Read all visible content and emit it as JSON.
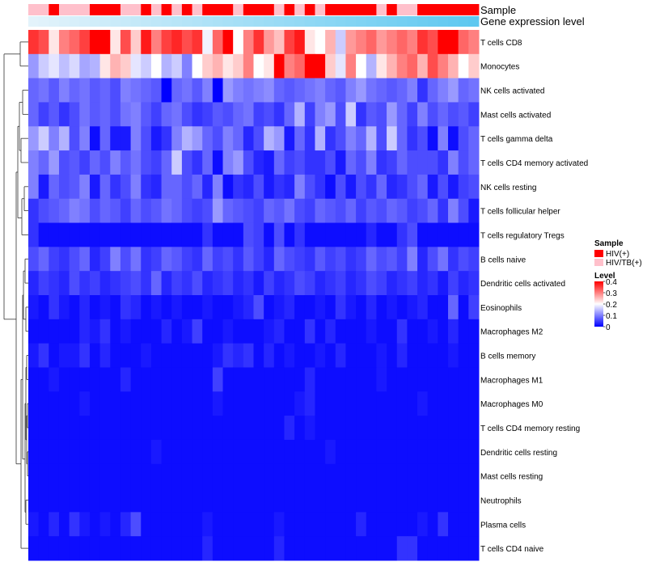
{
  "chart_data": {
    "type": "heatmap",
    "title": "",
    "annotation_tracks": [
      "Sample",
      "Gene expression level"
    ],
    "sample_legend": {
      "title": "Sample",
      "entries": [
        {
          "label": "HIV(+)",
          "color": "#ff0000"
        },
        {
          "label": "HIV/TB(+)",
          "color": "#ffc0cb"
        }
      ]
    },
    "level_legend": {
      "title": "Level",
      "ticks": [
        "0.4",
        "0.3",
        "0.2",
        "0.1",
        "0"
      ],
      "range": [
        0,
        0.4
      ],
      "colors": [
        "#0000ff",
        "#ffffff",
        "#ff0000"
      ]
    },
    "sample_group": [
      "HIV/TB(+)",
      "HIV/TB(+)",
      "HIV(+)",
      "HIV/TB(+)",
      "HIV/TB(+)",
      "HIV/TB(+)",
      "HIV(+)",
      "HIV(+)",
      "HIV(+)",
      "HIV/TB(+)",
      "HIV/TB(+)",
      "HIV(+)",
      "HIV/TB(+)",
      "HIV(+)",
      "HIV/TB(+)",
      "HIV(+)",
      "HIV/TB(+)",
      "HIV(+)",
      "HIV(+)",
      "HIV(+)",
      "HIV/TB(+)",
      "HIV(+)",
      "HIV(+)",
      "HIV(+)",
      "HIV/TB(+)",
      "HIV(+)",
      "HIV/TB(+)",
      "HIV(+)",
      "HIV/TB(+)",
      "HIV(+)",
      "HIV(+)",
      "HIV(+)",
      "HIV(+)",
      "HIV(+)",
      "HIV/TB(+)",
      "HIV(+)",
      "HIV/TB(+)",
      "HIV/TB(+)",
      "HIV(+)",
      "HIV(+)",
      "HIV(+)",
      "HIV(+)",
      "HIV(+)",
      "HIV(+)"
    ],
    "rows": [
      {
        "label": "T cells CD8",
        "values": [
          0.36,
          0.34,
          0.22,
          0.3,
          0.32,
          0.35,
          0.4,
          0.4,
          0.22,
          0.34,
          0.24,
          0.38,
          0.3,
          0.35,
          0.37,
          0.34,
          0.36,
          0.19,
          0.32,
          0.4,
          0.2,
          0.3,
          0.36,
          0.28,
          0.25,
          0.35,
          0.38,
          0.22,
          0.2,
          0.26,
          0.16,
          0.28,
          0.3,
          0.32,
          0.28,
          0.3,
          0.32,
          0.3,
          0.36,
          0.34,
          0.4,
          0.4,
          0.32,
          0.3
        ]
      },
      {
        "label": "Monocytes",
        "values": [
          0.12,
          0.16,
          0.18,
          0.15,
          0.17,
          0.13,
          0.14,
          0.22,
          0.26,
          0.24,
          0.18,
          0.16,
          0.2,
          0.14,
          0.16,
          0.1,
          0.2,
          0.24,
          0.26,
          0.22,
          0.24,
          0.3,
          0.2,
          0.22,
          0.4,
          0.3,
          0.32,
          0.4,
          0.4,
          0.24,
          0.18,
          0.3,
          0.2,
          0.14,
          0.22,
          0.26,
          0.3,
          0.32,
          0.26,
          0.34,
          0.3,
          0.26,
          0.2,
          0.24
        ]
      },
      {
        "label": "NK cells activated",
        "values": [
          0.08,
          0.09,
          0.07,
          0.1,
          0.08,
          0.09,
          0.07,
          0.08,
          0.06,
          0.1,
          0.09,
          0.08,
          0.07,
          0.0,
          0.08,
          0.09,
          0.07,
          0.1,
          0.0,
          0.12,
          0.1,
          0.09,
          0.1,
          0.11,
          0.08,
          0.07,
          0.08,
          0.09,
          0.1,
          0.08,
          0.07,
          0.1,
          0.12,
          0.09,
          0.08,
          0.07,
          0.08,
          0.1,
          0.04,
          0.08,
          0.1,
          0.12,
          0.08,
          0.09
        ]
      },
      {
        "label": "Mast cells activated",
        "values": [
          0.08,
          0.05,
          0.07,
          0.04,
          0.06,
          0.09,
          0.07,
          0.08,
          0.06,
          0.09,
          0.1,
          0.07,
          0.05,
          0.08,
          0.09,
          0.06,
          0.04,
          0.05,
          0.07,
          0.06,
          0.08,
          0.09,
          0.05,
          0.06,
          0.04,
          0.08,
          0.14,
          0.05,
          0.1,
          0.12,
          0.06,
          0.16,
          0.04,
          0.07,
          0.06,
          0.12,
          0.08,
          0.05,
          0.1,
          0.06,
          0.08,
          0.06,
          0.07,
          0.05
        ]
      },
      {
        "label": "T cells gamma delta",
        "values": [
          0.12,
          0.16,
          0.1,
          0.14,
          0.06,
          0.1,
          0.01,
          0.08,
          0.02,
          0.02,
          0.1,
          0.06,
          0.02,
          0.04,
          0.1,
          0.14,
          0.12,
          0.08,
          0.06,
          0.1,
          0.08,
          0.03,
          0.06,
          0.14,
          0.12,
          0.02,
          0.08,
          0.04,
          0.14,
          0.04,
          0.06,
          0.1,
          0.08,
          0.14,
          0.06,
          0.16,
          0.08,
          0.04,
          0.06,
          0.01,
          0.1,
          0.01,
          0.06,
          0.08
        ]
      },
      {
        "label": "T cells CD4 memory activated",
        "values": [
          0.1,
          0.08,
          0.12,
          0.06,
          0.07,
          0.05,
          0.08,
          0.06,
          0.1,
          0.07,
          0.09,
          0.06,
          0.05,
          0.08,
          0.16,
          0.06,
          0.04,
          0.08,
          0.01,
          0.1,
          0.12,
          0.06,
          0.03,
          0.02,
          0.08,
          0.05,
          0.06,
          0.04,
          0.04,
          0.06,
          0.02,
          0.08,
          0.06,
          0.1,
          0.04,
          0.05,
          0.08,
          0.06,
          0.06,
          0.06,
          0.04,
          0.1,
          0.06,
          0.08
        ]
      },
      {
        "label": "NK cells resting",
        "values": [
          0.1,
          0.02,
          0.08,
          0.06,
          0.07,
          0.1,
          0.02,
          0.08,
          0.04,
          0.06,
          0.1,
          0.04,
          0.03,
          0.08,
          0.08,
          0.06,
          0.08,
          0.03,
          0.1,
          0.01,
          0.04,
          0.03,
          0.06,
          0.02,
          0.04,
          0.03,
          0.1,
          0.06,
          0.04,
          0.01,
          0.06,
          0.02,
          0.06,
          0.04,
          0.08,
          0.03,
          0.04,
          0.06,
          0.08,
          0.02,
          0.06,
          0.02,
          0.05,
          0.06
        ]
      },
      {
        "label": "T cells follicular helper",
        "values": [
          0.04,
          0.06,
          0.07,
          0.08,
          0.1,
          0.09,
          0.06,
          0.08,
          0.07,
          0.05,
          0.08,
          0.06,
          0.07,
          0.09,
          0.08,
          0.06,
          0.05,
          0.06,
          0.12,
          0.08,
          0.07,
          0.06,
          0.05,
          0.08,
          0.07,
          0.09,
          0.06,
          0.05,
          0.08,
          0.07,
          0.06,
          0.08,
          0.05,
          0.07,
          0.06,
          0.08,
          0.07,
          0.05,
          0.06,
          0.08,
          0.04,
          0.1,
          0.06,
          0.02
        ]
      },
      {
        "label": "T cells regulatory  Tregs",
        "values": [
          0.04,
          0.01,
          0.01,
          0.01,
          0.01,
          0.01,
          0.01,
          0.01,
          0.01,
          0.01,
          0.01,
          0.01,
          0.01,
          0.01,
          0.01,
          0.01,
          0.01,
          0.04,
          0.01,
          0.01,
          0.01,
          0.06,
          0.05,
          0.01,
          0.06,
          0.01,
          0.04,
          0.01,
          0.01,
          0.01,
          0.01,
          0.01,
          0.01,
          0.03,
          0.01,
          0.01,
          0.04,
          0.06,
          0.01,
          0.01,
          0.01,
          0.01,
          0.01,
          0.01
        ]
      },
      {
        "label": "B cells naive",
        "values": [
          0.06,
          0.08,
          0.05,
          0.04,
          0.06,
          0.08,
          0.03,
          0.05,
          0.1,
          0.06,
          0.09,
          0.04,
          0.05,
          0.08,
          0.07,
          0.05,
          0.04,
          0.08,
          0.05,
          0.06,
          0.04,
          0.07,
          0.05,
          0.03,
          0.08,
          0.06,
          0.05,
          0.04,
          0.07,
          0.05,
          0.06,
          0.04,
          0.05,
          0.08,
          0.06,
          0.07,
          0.05,
          0.1,
          0.03,
          0.06,
          0.09,
          0.04,
          0.06,
          0.05
        ]
      },
      {
        "label": "Dendritic cells activated",
        "values": [
          0.03,
          0.05,
          0.04,
          0.03,
          0.06,
          0.04,
          0.05,
          0.03,
          0.04,
          0.05,
          0.06,
          0.04,
          0.08,
          0.03,
          0.05,
          0.04,
          0.06,
          0.03,
          0.04,
          0.05,
          0.03,
          0.04,
          0.02,
          0.05,
          0.03,
          0.04,
          0.06,
          0.05,
          0.03,
          0.04,
          0.05,
          0.03,
          0.04,
          0.06,
          0.05,
          0.03,
          0.04,
          0.05,
          0.03,
          0.04,
          0.02,
          0.05,
          0.03,
          0.04
        ]
      },
      {
        "label": "Eosinophils",
        "values": [
          0.02,
          0.01,
          0.04,
          0.02,
          0.01,
          0.03,
          0.01,
          0.02,
          0.01,
          0.04,
          0.03,
          0.01,
          0.02,
          0.01,
          0.02,
          0.01,
          0.01,
          0.02,
          0.01,
          0.01,
          0.02,
          0.03,
          0.06,
          0.01,
          0.02,
          0.03,
          0.01,
          0.01,
          0.02,
          0.01,
          0.04,
          0.02,
          0.01,
          0.03,
          0.01,
          0.02,
          0.01,
          0.02,
          0.03,
          0.01,
          0.01,
          0.08,
          0.01,
          0.05
        ]
      },
      {
        "label": "Macrophages M2",
        "values": [
          0.01,
          0.01,
          0.01,
          0.01,
          0.01,
          0.03,
          0.02,
          0.04,
          0.01,
          0.02,
          0.01,
          0.01,
          0.01,
          0.03,
          0.01,
          0.02,
          0.05,
          0.01,
          0.01,
          0.02,
          0.01,
          0.01,
          0.01,
          0.02,
          0.03,
          0.01,
          0.01,
          0.04,
          0.01,
          0.03,
          0.01,
          0.01,
          0.01,
          0.02,
          0.01,
          0.01,
          0.04,
          0.01,
          0.01,
          0.02,
          0.01,
          0.03,
          0.01,
          0.01
        ]
      },
      {
        "label": "B cells memory",
        "values": [
          0.02,
          0.04,
          0.01,
          0.02,
          0.02,
          0.04,
          0.01,
          0.03,
          0.01,
          0.01,
          0.01,
          0.02,
          0.01,
          0.01,
          0.01,
          0.01,
          0.01,
          0.01,
          0.02,
          0.04,
          0.03,
          0.04,
          0.01,
          0.03,
          0.01,
          0.02,
          0.01,
          0.01,
          0.02,
          0.01,
          0.03,
          0.01,
          0.01,
          0.01,
          0.02,
          0.01,
          0.03,
          0.01,
          0.01,
          0.01,
          0.01,
          0.02,
          0.01,
          0.01
        ]
      },
      {
        "label": "Macrophages M1",
        "values": [
          0.01,
          0.01,
          0.02,
          0.01,
          0.01,
          0.01,
          0.01,
          0.01,
          0.01,
          0.03,
          0.01,
          0.01,
          0.01,
          0.01,
          0.01,
          0.01,
          0.01,
          0.01,
          0.05,
          0.01,
          0.01,
          0.01,
          0.01,
          0.01,
          0.01,
          0.01,
          0.01,
          0.03,
          0.01,
          0.01,
          0.01,
          0.01,
          0.01,
          0.01,
          0.02,
          0.01,
          0.01,
          0.01,
          0.01,
          0.01,
          0.01,
          0.01,
          0.01,
          0.01
        ]
      },
      {
        "label": "Macrophages M0",
        "values": [
          0.01,
          0.01,
          0.01,
          0.01,
          0.01,
          0.02,
          0.01,
          0.01,
          0.01,
          0.01,
          0.01,
          0.01,
          0.01,
          0.01,
          0.01,
          0.01,
          0.01,
          0.01,
          0.02,
          0.01,
          0.01,
          0.01,
          0.01,
          0.01,
          0.01,
          0.01,
          0.02,
          0.03,
          0.01,
          0.01,
          0.01,
          0.01,
          0.01,
          0.01,
          0.01,
          0.01,
          0.01,
          0.01,
          0.02,
          0.01,
          0.01,
          0.01,
          0.01,
          0.01
        ]
      },
      {
        "label": "T cells CD4 memory resting",
        "values": [
          0.01,
          0.01,
          0.01,
          0.01,
          0.01,
          0.01,
          0.01,
          0.01,
          0.01,
          0.01,
          0.01,
          0.01,
          0.01,
          0.01,
          0.01,
          0.01,
          0.01,
          0.01,
          0.01,
          0.01,
          0.01,
          0.01,
          0.01,
          0.01,
          0.01,
          0.03,
          0.01,
          0.02,
          0.01,
          0.01,
          0.01,
          0.01,
          0.01,
          0.01,
          0.01,
          0.01,
          0.01,
          0.01,
          0.01,
          0.01,
          0.01,
          0.01,
          0.01,
          0.01
        ]
      },
      {
        "label": "Dendritic cells resting",
        "values": [
          0.01,
          0.01,
          0.01,
          0.01,
          0.01,
          0.01,
          0.01,
          0.01,
          0.01,
          0.01,
          0.01,
          0.01,
          0.02,
          0.01,
          0.01,
          0.01,
          0.01,
          0.01,
          0.01,
          0.01,
          0.01,
          0.01,
          0.01,
          0.01,
          0.01,
          0.01,
          0.01,
          0.01,
          0.01,
          0.02,
          0.01,
          0.01,
          0.01,
          0.01,
          0.01,
          0.01,
          0.01,
          0.01,
          0.01,
          0.01,
          0.01,
          0.01,
          0.01,
          0.01
        ]
      },
      {
        "label": "Mast cells resting",
        "values": [
          0.01,
          0.01,
          0.01,
          0.01,
          0.01,
          0.01,
          0.01,
          0.01,
          0.01,
          0.01,
          0.01,
          0.01,
          0.01,
          0.01,
          0.01,
          0.01,
          0.01,
          0.01,
          0.01,
          0.01,
          0.01,
          0.01,
          0.01,
          0.01,
          0.01,
          0.01,
          0.01,
          0.01,
          0.01,
          0.01,
          0.01,
          0.01,
          0.01,
          0.01,
          0.01,
          0.01,
          0.01,
          0.01,
          0.01,
          0.01,
          0.01,
          0.01,
          0.01,
          0.01
        ]
      },
      {
        "label": "Neutrophils",
        "values": [
          0.01,
          0.01,
          0.01,
          0.01,
          0.01,
          0.01,
          0.01,
          0.01,
          0.01,
          0.01,
          0.01,
          0.01,
          0.01,
          0.01,
          0.01,
          0.01,
          0.01,
          0.01,
          0.01,
          0.01,
          0.01,
          0.01,
          0.01,
          0.01,
          0.01,
          0.01,
          0.01,
          0.01,
          0.01,
          0.01,
          0.01,
          0.01,
          0.01,
          0.01,
          0.01,
          0.01,
          0.01,
          0.01,
          0.01,
          0.01,
          0.01,
          0.01,
          0.01,
          0.01
        ]
      },
      {
        "label": "Plasma cells",
        "values": [
          0.02,
          0.01,
          0.03,
          0.01,
          0.04,
          0.02,
          0.01,
          0.02,
          0.01,
          0.03,
          0.06,
          0.01,
          0.01,
          0.01,
          0.01,
          0.01,
          0.01,
          0.02,
          0.01,
          0.01,
          0.01,
          0.01,
          0.01,
          0.01,
          0.02,
          0.01,
          0.01,
          0.01,
          0.01,
          0.01,
          0.01,
          0.01,
          0.03,
          0.01,
          0.01,
          0.01,
          0.01,
          0.01,
          0.02,
          0.01,
          0.04,
          0.01,
          0.01,
          0.01
        ]
      },
      {
        "label": "T cells CD4 naive",
        "values": [
          0.01,
          0.01,
          0.01,
          0.01,
          0.01,
          0.01,
          0.01,
          0.01,
          0.01,
          0.01,
          0.01,
          0.01,
          0.01,
          0.01,
          0.01,
          0.01,
          0.01,
          0.03,
          0.01,
          0.01,
          0.01,
          0.01,
          0.01,
          0.01,
          0.03,
          0.01,
          0.01,
          0.01,
          0.01,
          0.01,
          0.01,
          0.01,
          0.01,
          0.01,
          0.01,
          0.01,
          0.04,
          0.04,
          0.01,
          0.01,
          0.01,
          0.01,
          0.01,
          0.01
        ]
      }
    ]
  }
}
